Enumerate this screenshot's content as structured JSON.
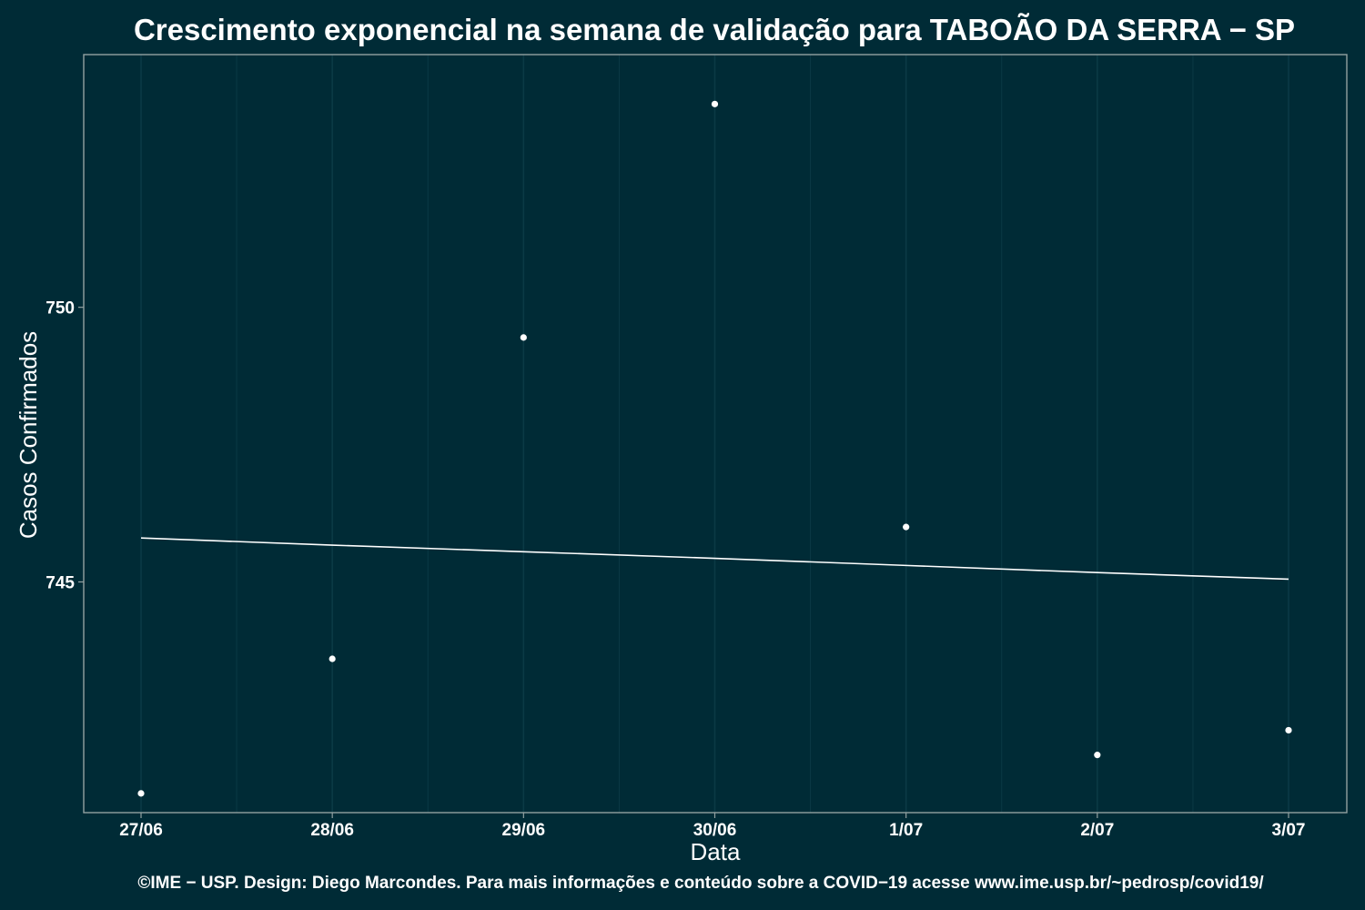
{
  "colors": {
    "background": "#002b36",
    "panel_border": "#93a1a1",
    "grid": "#0b3a45",
    "points": "#ffffff",
    "line": "#ffffff",
    "text": "#ffffff"
  },
  "caption": "©IME − USP. Design: Diego Marcondes. Para mais informações e conteúdo sobre a COVID−19 acesse www.ime.usp.br/~pedrosp/covid19/",
  "chart_data": {
    "type": "scatter",
    "title": "Crescimento exponencial na semana de validação para TABOÃO DA SERRA − SP",
    "xlabel": "Data",
    "ylabel": "Casos Confirmados",
    "categories": [
      "27/06",
      "28/06",
      "29/06",
      "30/06",
      "1/07",
      "2/07",
      "3/07"
    ],
    "y_ticks": [
      745,
      750
    ],
    "ylim": [
      740.8,
      754.6
    ],
    "grid": true,
    "legend": "none",
    "series": [
      {
        "kind": "points",
        "values": [
          741.15,
          743.6,
          749.45,
          753.7,
          746.0,
          741.85,
          742.3
        ]
      },
      {
        "kind": "fitted-line",
        "values": [
          745.8,
          745.67,
          745.55,
          745.43,
          745.3,
          745.17,
          745.05
        ]
      }
    ]
  }
}
